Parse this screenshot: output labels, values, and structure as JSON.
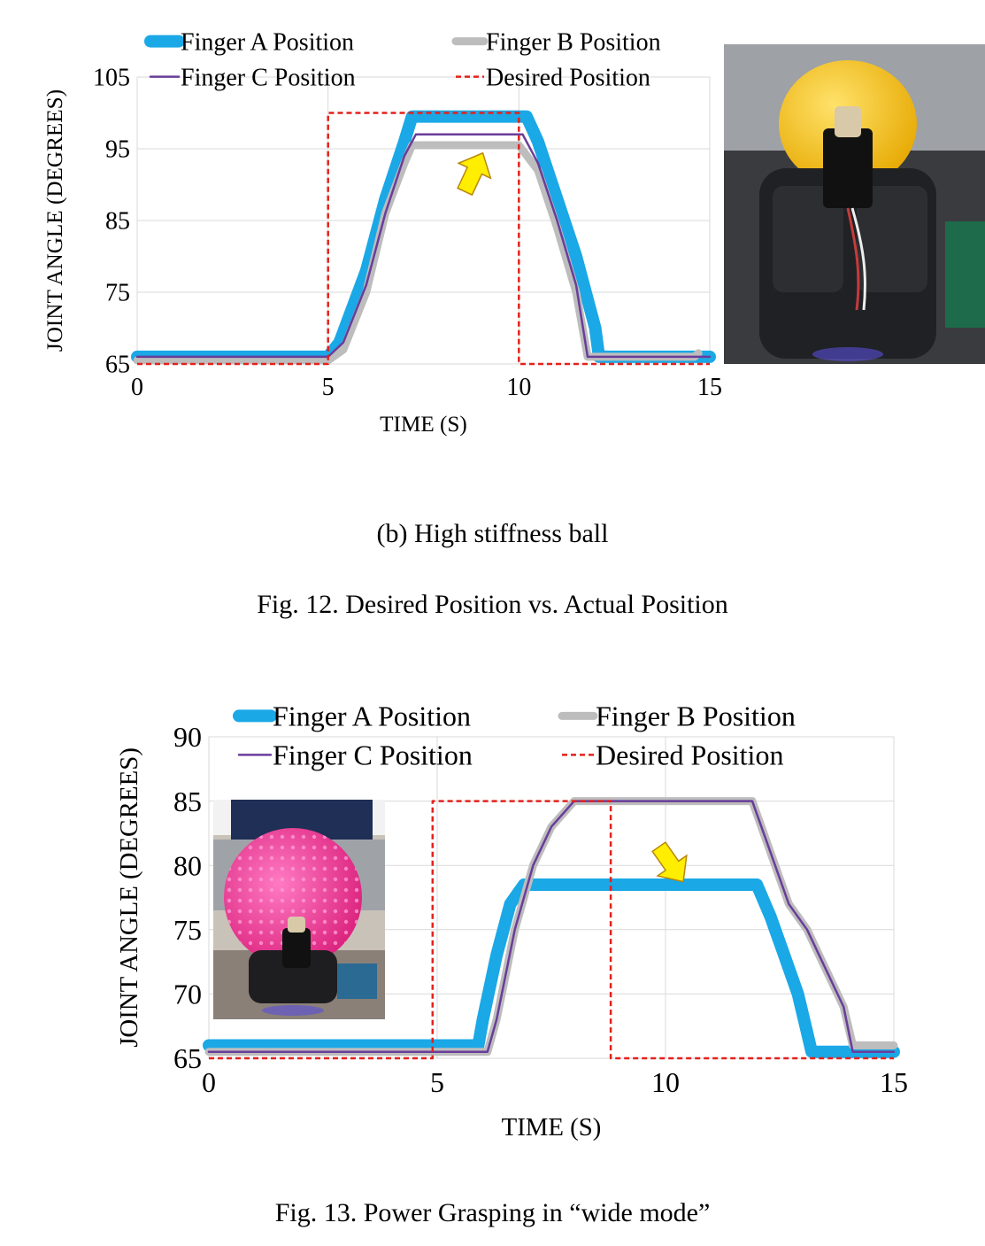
{
  "captions": {
    "sub_b": "(b) High stiffness ball",
    "fig12": "Fig. 12.  Desired Position vs. Actual Position",
    "fig13": "Fig. 13.  Power Grasping in “wide mode”"
  },
  "photos": {
    "fig12_photo": "robotic gripper grasping a yellow ball",
    "fig13_photo": "robotic gripper grasping a pink spiky ball"
  },
  "colors": {
    "finger_a": "#1aa8e6",
    "finger_b": "#bdbdbd",
    "finger_c": "#6a3d9a",
    "desired": "#e3211c",
    "grid": "#d9d9d9",
    "arrow": "#ffee00"
  },
  "chart_data": [
    {
      "type": "line",
      "title": "",
      "xlabel": "TIME (S)",
      "ylabel": "JOINT ANGLE (DEGREES)",
      "xlim": [
        0,
        15
      ],
      "ylim": [
        65,
        105
      ],
      "xticks": [
        "0",
        "5",
        "10",
        "15"
      ],
      "yticks": [
        "65",
        "75",
        "85",
        "95",
        "105"
      ],
      "grid": true,
      "legend_position": "top",
      "annotation": "arrow pointing up at Finger B plateau near (8.8, 95)",
      "series": [
        {
          "name": "Finger A Position",
          "key": "finger_a",
          "x": [
            0,
            5,
            5.3,
            6,
            6.5,
            7,
            7.2,
            10.2,
            10.5,
            11,
            11.5,
            12,
            12.1,
            15
          ],
          "y": [
            66,
            66,
            68,
            78,
            88,
            96,
            99.5,
            99.5,
            96,
            88,
            80,
            70,
            66,
            66
          ]
        },
        {
          "name": "Finger B Position",
          "key": "finger_b",
          "x": [
            0,
            5,
            5.4,
            6,
            6.5,
            7,
            7.2,
            10,
            10.5,
            11,
            11.5,
            11.8,
            14.6,
            14.7
          ],
          "y": [
            65.5,
            65.5,
            67,
            75,
            86,
            93,
            95.5,
            95.5,
            92,
            84,
            75,
            66,
            66,
            66.5
          ]
        },
        {
          "name": "Finger C Position",
          "key": "finger_c",
          "x": [
            0,
            5,
            5.4,
            6,
            6.5,
            7,
            7.3,
            10.1,
            10.5,
            11,
            11.5,
            11.8,
            15
          ],
          "y": [
            66,
            66,
            68,
            76,
            86,
            94,
            97,
            97,
            93,
            85,
            76,
            66,
            66
          ]
        },
        {
          "name": "Desired Position",
          "key": "desired",
          "x": [
            0,
            5,
            5,
            10,
            10,
            15
          ],
          "y": [
            65,
            65,
            100,
            100,
            65,
            65
          ]
        }
      ]
    },
    {
      "type": "line",
      "title": "",
      "xlabel": "TIME (S)",
      "ylabel": "JOINT ANGLE (DEGREES)",
      "xlim": [
        0,
        15
      ],
      "ylim": [
        65,
        90
      ],
      "xticks": [
        "0",
        "5",
        "10",
        "15"
      ],
      "yticks": [
        "65",
        "70",
        "75",
        "80",
        "85",
        "90"
      ],
      "grid": true,
      "legend_position": "top",
      "annotation": "arrow pointing down at Finger A plateau near (10.1, 79)",
      "series": [
        {
          "name": "Finger A Position",
          "key": "finger_a",
          "x": [
            0,
            5.9,
            6.0,
            6.3,
            6.6,
            6.9,
            7.2,
            12.0,
            12.3,
            12.6,
            12.9,
            13.1,
            13.2,
            15
          ],
          "y": [
            66,
            66,
            68,
            73,
            77,
            78.5,
            78.5,
            78.5,
            76,
            73,
            70,
            67,
            65.5,
            65.5
          ]
        },
        {
          "name": "Finger B Position",
          "key": "finger_b",
          "x": [
            0,
            6.1,
            6.3,
            6.7,
            7.1,
            7.5,
            8.0,
            11.9,
            12.3,
            12.7,
            13.1,
            13.5,
            13.9,
            14.1,
            15
          ],
          "y": [
            65.5,
            65.5,
            68,
            75,
            80,
            83,
            85,
            85,
            81,
            77,
            75,
            72,
            69,
            66,
            66
          ]
        },
        {
          "name": "Finger C Position",
          "key": "finger_c",
          "x": [
            0,
            6.1,
            6.3,
            6.7,
            7.1,
            7.5,
            8.0,
            11.9,
            12.3,
            12.7,
            13.1,
            13.5,
            13.9,
            14.1,
            15
          ],
          "y": [
            65.5,
            65.5,
            68,
            75,
            80,
            83,
            85,
            85,
            81,
            77,
            75,
            72,
            69,
            65.5,
            65.5
          ]
        },
        {
          "name": "Desired Position",
          "key": "desired",
          "x": [
            0,
            4.9,
            4.9,
            8.8,
            8.8,
            15
          ],
          "y": [
            65,
            65,
            85,
            85,
            65,
            65
          ]
        }
      ]
    }
  ]
}
